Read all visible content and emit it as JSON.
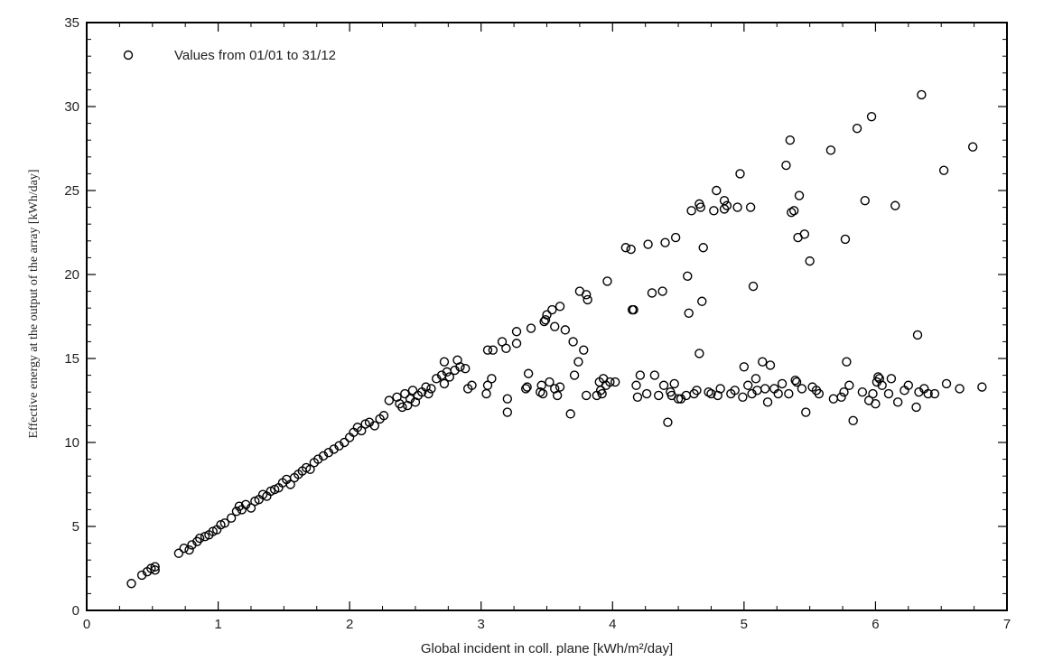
{
  "chart_data": {
    "type": "scatter",
    "xlabel": "Global incident in coll. plane [kWh/m²/day]",
    "ylabel": "Effective energy at the output of the array [kWh/day]",
    "xlim": [
      0,
      7
    ],
    "ylim": [
      0,
      35
    ],
    "x_ticks": [
      "0",
      "1",
      "2",
      "3",
      "4",
      "5",
      "6",
      "7"
    ],
    "y_ticks": [
      "0",
      "5",
      "10",
      "15",
      "20",
      "25",
      "30",
      "35"
    ],
    "grid": false,
    "legend_position": "top-left",
    "series": [
      {
        "name": "Values from 01/01 to 31/12",
        "color": "#000000",
        "marker": "open-circle",
        "points": [
          [
            0.34,
            1.6
          ],
          [
            0.42,
            2.1
          ],
          [
            0.46,
            2.3
          ],
          [
            0.49,
            2.5
          ],
          [
            0.52,
            2.6
          ],
          [
            0.52,
            2.4
          ],
          [
            0.7,
            3.4
          ],
          [
            0.74,
            3.7
          ],
          [
            0.78,
            3.6
          ],
          [
            0.8,
            3.9
          ],
          [
            0.84,
            4.1
          ],
          [
            0.86,
            4.3
          ],
          [
            0.9,
            4.4
          ],
          [
            0.93,
            4.5
          ],
          [
            0.96,
            4.7
          ],
          [
            0.99,
            4.8
          ],
          [
            1.02,
            5.1
          ],
          [
            1.05,
            5.2
          ],
          [
            1.1,
            5.5
          ],
          [
            1.14,
            5.9
          ],
          [
            1.16,
            6.2
          ],
          [
            1.18,
            6.0
          ],
          [
            1.21,
            6.3
          ],
          [
            1.25,
            6.1
          ],
          [
            1.28,
            6.5
          ],
          [
            1.31,
            6.6
          ],
          [
            1.34,
            6.9
          ],
          [
            1.37,
            6.8
          ],
          [
            1.4,
            7.1
          ],
          [
            1.43,
            7.2
          ],
          [
            1.46,
            7.3
          ],
          [
            1.49,
            7.6
          ],
          [
            1.52,
            7.8
          ],
          [
            1.55,
            7.5
          ],
          [
            1.58,
            7.9
          ],
          [
            1.61,
            8.1
          ],
          [
            1.64,
            8.3
          ],
          [
            1.67,
            8.5
          ],
          [
            1.7,
            8.4
          ],
          [
            1.73,
            8.8
          ],
          [
            1.76,
            9.0
          ],
          [
            1.8,
            9.2
          ],
          [
            1.84,
            9.4
          ],
          [
            1.88,
            9.6
          ],
          [
            1.92,
            9.8
          ],
          [
            1.96,
            10.0
          ],
          [
            2.0,
            10.3
          ],
          [
            2.03,
            10.6
          ],
          [
            2.06,
            10.9
          ],
          [
            2.09,
            10.7
          ],
          [
            2.12,
            11.1
          ],
          [
            2.15,
            11.2
          ],
          [
            2.19,
            11.0
          ],
          [
            2.23,
            11.4
          ],
          [
            2.26,
            11.6
          ],
          [
            2.3,
            12.5
          ],
          [
            2.36,
            12.7
          ],
          [
            2.38,
            12.3
          ],
          [
            2.4,
            12.1
          ],
          [
            2.42,
            12.9
          ],
          [
            2.44,
            12.2
          ],
          [
            2.46,
            12.6
          ],
          [
            2.48,
            13.1
          ],
          [
            2.5,
            12.4
          ],
          [
            2.52,
            12.8
          ],
          [
            2.55,
            13.0
          ],
          [
            2.58,
            13.3
          ],
          [
            2.6,
            12.9
          ],
          [
            2.62,
            13.2
          ],
          [
            2.66,
            13.8
          ],
          [
            2.7,
            14.0
          ],
          [
            2.72,
            13.5
          ],
          [
            2.74,
            14.2
          ],
          [
            2.76,
            13.9
          ],
          [
            2.8,
            14.3
          ],
          [
            2.84,
            14.5
          ],
          [
            2.88,
            14.4
          ],
          [
            2.72,
            14.8
          ],
          [
            2.82,
            14.9
          ],
          [
            2.9,
            13.2
          ],
          [
            2.93,
            13.4
          ],
          [
            3.04,
            12.9
          ],
          [
            3.05,
            13.4
          ],
          [
            3.08,
            13.8
          ],
          [
            3.05,
            15.5
          ],
          [
            3.09,
            15.5
          ],
          [
            3.16,
            16.0
          ],
          [
            3.19,
            15.6
          ],
          [
            3.2,
            12.6
          ],
          [
            3.2,
            11.8
          ],
          [
            3.27,
            16.6
          ],
          [
            3.27,
            15.9
          ],
          [
            3.34,
            13.2
          ],
          [
            3.35,
            13.3
          ],
          [
            3.36,
            14.1
          ],
          [
            3.38,
            16.8
          ],
          [
            3.45,
            13.0
          ],
          [
            3.46,
            13.4
          ],
          [
            3.47,
            12.9
          ],
          [
            3.48,
            17.2
          ],
          [
            3.49,
            17.3
          ],
          [
            3.5,
            17.6
          ],
          [
            3.52,
            13.6
          ],
          [
            3.54,
            17.9
          ],
          [
            3.56,
            16.9
          ],
          [
            3.56,
            13.2
          ],
          [
            3.58,
            12.8
          ],
          [
            3.6,
            18.1
          ],
          [
            3.6,
            13.3
          ],
          [
            3.64,
            16.7
          ],
          [
            3.68,
            11.7
          ],
          [
            3.7,
            16.0
          ],
          [
            3.71,
            14.0
          ],
          [
            3.74,
            14.8
          ],
          [
            3.75,
            19.0
          ],
          [
            3.78,
            15.5
          ],
          [
            3.8,
            12.8
          ],
          [
            3.8,
            18.8
          ],
          [
            3.81,
            18.5
          ],
          [
            3.88,
            12.8
          ],
          [
            3.9,
            13.6
          ],
          [
            3.91,
            13.1
          ],
          [
            3.92,
            12.9
          ],
          [
            3.93,
            13.8
          ],
          [
            3.95,
            13.4
          ],
          [
            3.96,
            19.6
          ],
          [
            3.98,
            13.6
          ],
          [
            4.02,
            13.6
          ],
          [
            4.1,
            21.6
          ],
          [
            4.14,
            21.5
          ],
          [
            4.15,
            17.9
          ],
          [
            4.16,
            17.9
          ],
          [
            4.18,
            13.4
          ],
          [
            4.19,
            12.7
          ],
          [
            4.21,
            14.0
          ],
          [
            4.26,
            12.9
          ],
          [
            4.27,
            21.8
          ],
          [
            4.3,
            18.9
          ],
          [
            4.32,
            14.0
          ],
          [
            4.35,
            12.8
          ],
          [
            4.38,
            19.0
          ],
          [
            4.39,
            13.4
          ],
          [
            4.4,
            21.9
          ],
          [
            4.42,
            11.2
          ],
          [
            4.44,
            13.0
          ],
          [
            4.45,
            12.8
          ],
          [
            4.47,
            13.5
          ],
          [
            4.48,
            22.2
          ],
          [
            4.5,
            12.6
          ],
          [
            4.52,
            12.6
          ],
          [
            4.56,
            12.8
          ],
          [
            4.57,
            19.9
          ],
          [
            4.58,
            17.7
          ],
          [
            4.6,
            23.8
          ],
          [
            4.62,
            12.9
          ],
          [
            4.64,
            13.1
          ],
          [
            4.66,
            15.3
          ],
          [
            4.66,
            24.2
          ],
          [
            4.67,
            24.0
          ],
          [
            4.68,
            18.4
          ],
          [
            4.69,
            21.6
          ],
          [
            4.73,
            13.0
          ],
          [
            4.75,
            12.9
          ],
          [
            4.77,
            23.8
          ],
          [
            4.79,
            25.0
          ],
          [
            4.8,
            12.8
          ],
          [
            4.82,
            13.2
          ],
          [
            4.85,
            24.4
          ],
          [
            4.85,
            23.9
          ],
          [
            4.87,
            24.1
          ],
          [
            4.9,
            12.9
          ],
          [
            4.93,
            13.1
          ],
          [
            4.95,
            24.0
          ],
          [
            4.97,
            26.0
          ],
          [
            4.99,
            12.7
          ],
          [
            5.0,
            14.5
          ],
          [
            5.03,
            13.4
          ],
          [
            5.05,
            24.0
          ],
          [
            5.06,
            12.9
          ],
          [
            5.07,
            19.3
          ],
          [
            5.09,
            13.8
          ],
          [
            5.1,
            13.1
          ],
          [
            5.14,
            14.8
          ],
          [
            5.16,
            13.2
          ],
          [
            5.18,
            12.4
          ],
          [
            5.2,
            14.6
          ],
          [
            5.23,
            13.2
          ],
          [
            5.26,
            12.9
          ],
          [
            5.29,
            13.5
          ],
          [
            5.32,
            26.5
          ],
          [
            5.34,
            12.9
          ],
          [
            5.35,
            28.0
          ],
          [
            5.36,
            23.7
          ],
          [
            5.38,
            23.8
          ],
          [
            5.39,
            13.7
          ],
          [
            5.4,
            13.6
          ],
          [
            5.41,
            22.2
          ],
          [
            5.42,
            24.7
          ],
          [
            5.44,
            13.2
          ],
          [
            5.46,
            22.4
          ],
          [
            5.47,
            11.8
          ],
          [
            5.5,
            20.8
          ],
          [
            5.52,
            13.3
          ],
          [
            5.55,
            13.1
          ],
          [
            5.57,
            12.9
          ],
          [
            5.66,
            27.4
          ],
          [
            5.68,
            12.6
          ],
          [
            5.74,
            12.7
          ],
          [
            5.76,
            13.0
          ],
          [
            5.77,
            22.1
          ],
          [
            5.78,
            14.8
          ],
          [
            5.8,
            13.4
          ],
          [
            5.83,
            11.3
          ],
          [
            5.86,
            28.7
          ],
          [
            5.9,
            13.0
          ],
          [
            5.92,
            24.4
          ],
          [
            5.95,
            12.5
          ],
          [
            5.97,
            29.4
          ],
          [
            5.98,
            12.9
          ],
          [
            6.0,
            12.3
          ],
          [
            6.01,
            13.6
          ],
          [
            6.02,
            13.9
          ],
          [
            6.03,
            13.8
          ],
          [
            6.05,
            13.4
          ],
          [
            6.1,
            12.9
          ],
          [
            6.12,
            13.8
          ],
          [
            6.15,
            24.1
          ],
          [
            6.17,
            12.4
          ],
          [
            6.22,
            13.1
          ],
          [
            6.25,
            13.4
          ],
          [
            6.31,
            12.1
          ],
          [
            6.32,
            16.4
          ],
          [
            6.33,
            13.0
          ],
          [
            6.35,
            30.7
          ],
          [
            6.37,
            13.2
          ],
          [
            6.4,
            12.9
          ],
          [
            6.45,
            12.9
          ],
          [
            6.52,
            26.2
          ],
          [
            6.54,
            13.5
          ],
          [
            6.64,
            13.2
          ],
          [
            6.74,
            27.6
          ],
          [
            6.81,
            13.3
          ]
        ]
      }
    ]
  }
}
